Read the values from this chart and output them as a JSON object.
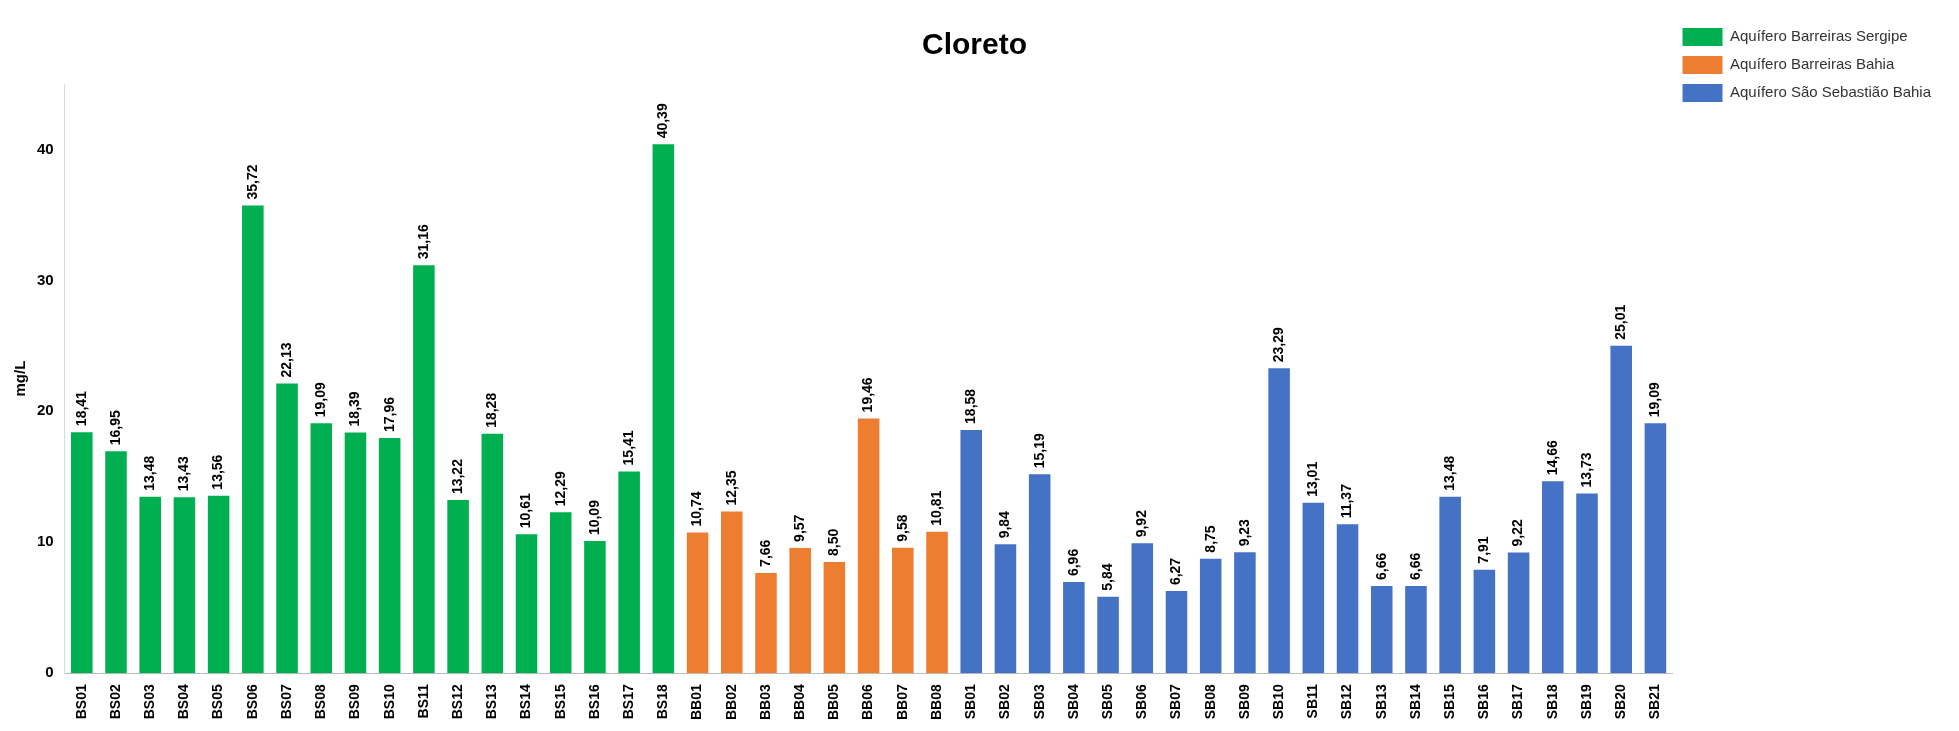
{
  "chart_data": {
    "type": "bar",
    "title": "Cloreto",
    "ylabel": "mg/L",
    "categories": [
      "BS01",
      "BS02",
      "BS03",
      "BS04",
      "BS05",
      "BS06",
      "BS07",
      "BS08",
      "BS09",
      "BS10",
      "BS11",
      "BS12",
      "BS13",
      "BS14",
      "BS15",
      "BS16",
      "BS17",
      "BS18",
      "BB01",
      "BB02",
      "BB03",
      "BB04",
      "BB05",
      "BB06",
      "BB07",
      "BB08",
      "SB01",
      "SB02",
      "SB03",
      "SB04",
      "SB05",
      "SB06",
      "SB07",
      "SB08",
      "SB09",
      "SB10",
      "SB11",
      "SB12",
      "SB13",
      "SB14",
      "SB15",
      "SB16",
      "SB17",
      "SB18",
      "SB19",
      "SB20",
      "SB21"
    ],
    "series": [
      {
        "name": "Aquífero Barreiras Sergipe",
        "color": "#00b050",
        "values": [
          18.41,
          16.95,
          13.48,
          13.43,
          13.56,
          35.72,
          22.13,
          19.09,
          18.39,
          17.96,
          31.16,
          13.22,
          18.28,
          10.61,
          12.29,
          10.09,
          15.41,
          40.39,
          null,
          null,
          null,
          null,
          null,
          null,
          null,
          null,
          null,
          null,
          null,
          null,
          null,
          null,
          null,
          null,
          null,
          null,
          null,
          null,
          null,
          null,
          null,
          null,
          null,
          null,
          null,
          null,
          null
        ],
        "value_labels": [
          "18,41",
          "16,95",
          "13,48",
          "13,43",
          "13,56",
          "35,72",
          "22,13",
          "19,09",
          "18,39",
          "17,96",
          "31,16",
          "13,22",
          "18,28",
          "10,61",
          "12,29",
          "10,09",
          "15,41",
          "40,39",
          null,
          null,
          null,
          null,
          null,
          null,
          null,
          null,
          null,
          null,
          null,
          null,
          null,
          null,
          null,
          null,
          null,
          null,
          null,
          null,
          null,
          null,
          null,
          null,
          null,
          null,
          null,
          null,
          null
        ]
      },
      {
        "name": "Aquífero Barreiras Bahia",
        "color": "#ed7d31",
        "values": [
          null,
          null,
          null,
          null,
          null,
          null,
          null,
          null,
          null,
          null,
          null,
          null,
          null,
          null,
          null,
          null,
          null,
          null,
          10.74,
          12.35,
          7.66,
          9.57,
          8.5,
          19.46,
          9.58,
          10.81,
          null,
          null,
          null,
          null,
          null,
          null,
          null,
          null,
          null,
          null,
          null,
          null,
          null,
          null,
          null,
          null,
          null,
          null,
          null,
          null,
          null
        ],
        "value_labels": [
          null,
          null,
          null,
          null,
          null,
          null,
          null,
          null,
          null,
          null,
          null,
          null,
          null,
          null,
          null,
          null,
          null,
          null,
          "10,74",
          "12,35",
          "7,66",
          "9,57",
          "8,50",
          "19,46",
          "9,58",
          "10,81",
          null,
          null,
          null,
          null,
          null,
          null,
          null,
          null,
          null,
          null,
          null,
          null,
          null,
          null,
          null,
          null,
          null,
          null,
          null,
          null,
          null
        ]
      },
      {
        "name": "Aquífero São Sebastião Bahia",
        "color": "#4472c4",
        "values": [
          null,
          null,
          null,
          null,
          null,
          null,
          null,
          null,
          null,
          null,
          null,
          null,
          null,
          null,
          null,
          null,
          null,
          null,
          null,
          null,
          null,
          null,
          null,
          null,
          null,
          null,
          18.58,
          9.84,
          15.19,
          6.96,
          5.84,
          9.92,
          6.27,
          8.75,
          9.23,
          23.29,
          13.01,
          11.37,
          6.66,
          6.66,
          13.48,
          7.91,
          9.22,
          14.66,
          13.73,
          25.01,
          19.09
        ],
        "value_labels": [
          null,
          null,
          null,
          null,
          null,
          null,
          null,
          null,
          null,
          null,
          null,
          null,
          null,
          null,
          null,
          null,
          null,
          null,
          null,
          null,
          null,
          null,
          null,
          null,
          null,
          null,
          "18,58",
          "9,84",
          "15,19",
          "6,96",
          "5,84",
          "9,92",
          "6,27",
          "8,75",
          "9,23",
          "23,29",
          "13,01",
          "11,37",
          "6,66",
          "6,66",
          "13,48",
          "7,91",
          "9,22",
          "14,66",
          "13,73",
          "25,01",
          "19,09"
        ]
      }
    ],
    "ylim": [
      0,
      45
    ],
    "yticks": [
      0,
      10,
      20,
      30,
      40
    ],
    "grid": false,
    "legend": "top right"
  }
}
